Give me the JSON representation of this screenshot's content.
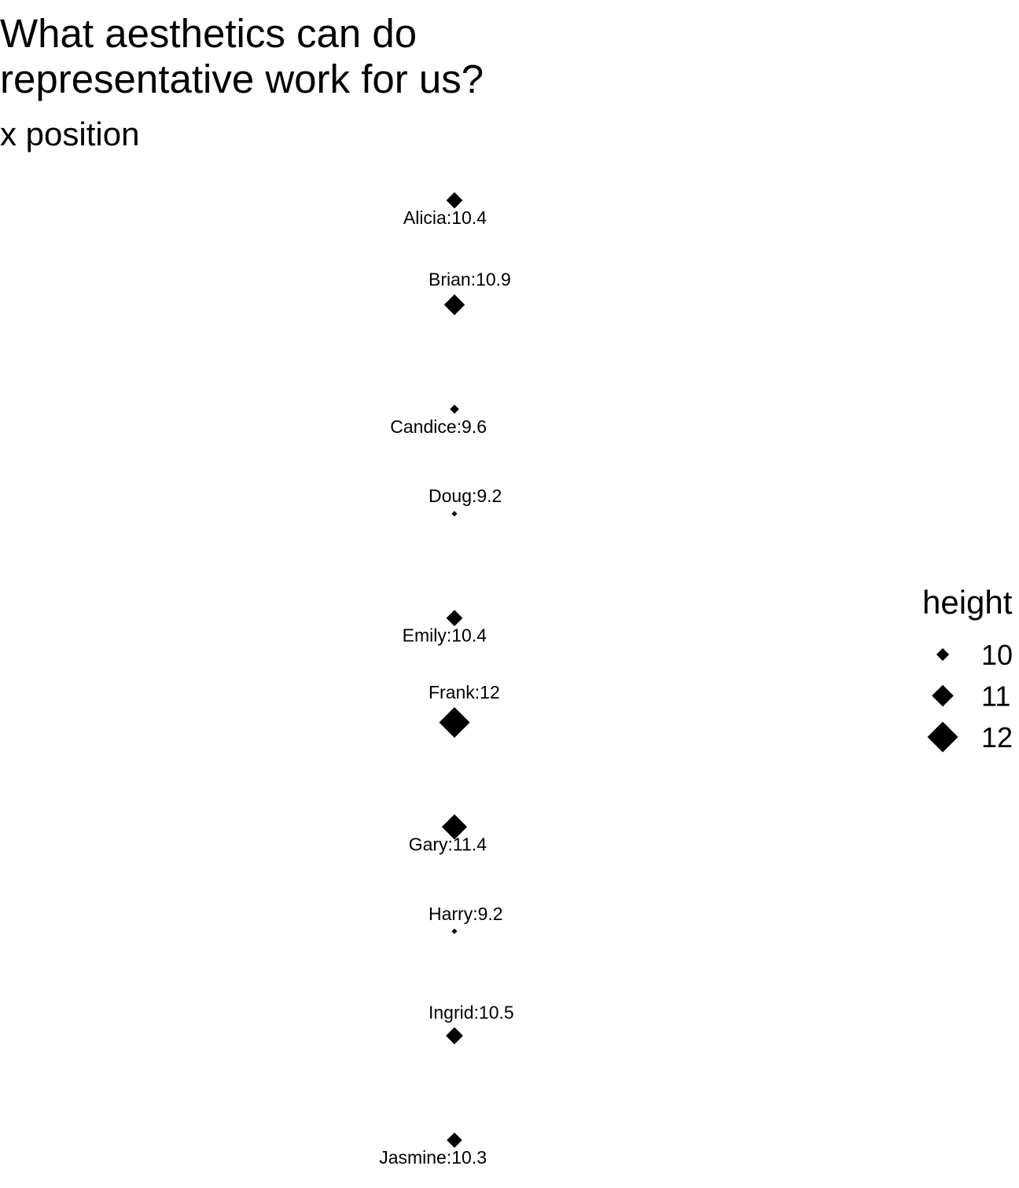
{
  "chart_data": {
    "type": "scatter",
    "title": "What aesthetics can do\nrepresentative work for us?",
    "subtitle": "x position",
    "size_aesthetic": "height",
    "shape": "diamond",
    "color": "#000000",
    "points": [
      {
        "name": "Alicia",
        "height": 10.4,
        "label": "Alicia:10.4",
        "label_side": "below-left"
      },
      {
        "name": "Brian",
        "height": 10.9,
        "label": "Brian:10.9",
        "label_side": "above-right"
      },
      {
        "name": "Candice",
        "height": 9.6,
        "label": "Candice:9.6",
        "label_side": "below-left"
      },
      {
        "name": "Doug",
        "height": 9.2,
        "label": "Doug:9.2",
        "label_side": "above-right"
      },
      {
        "name": "Emily",
        "height": 10.4,
        "label": "Emily:10.4",
        "label_side": "below-left"
      },
      {
        "name": "Frank",
        "height": 12,
        "label": "Frank:12",
        "label_side": "above-right"
      },
      {
        "name": "Gary",
        "height": 11.4,
        "label": "Gary:11.4",
        "label_side": "below-left"
      },
      {
        "name": "Harry",
        "height": 9.2,
        "label": "Harry:9.2",
        "label_side": "above-right"
      },
      {
        "name": "Ingrid",
        "height": 10.5,
        "label": "Ingrid:10.5",
        "label_side": "above-right"
      },
      {
        "name": "Jasmine",
        "height": 10.3,
        "label": "Jasmine:10.3",
        "label_side": "below-left"
      }
    ],
    "legend": {
      "title": "height",
      "placement": "right",
      "entries": [
        {
          "label": "10",
          "value": 10
        },
        {
          "label": "11",
          "value": 11
        },
        {
          "label": "12",
          "value": 12
        }
      ]
    },
    "grid": false
  }
}
